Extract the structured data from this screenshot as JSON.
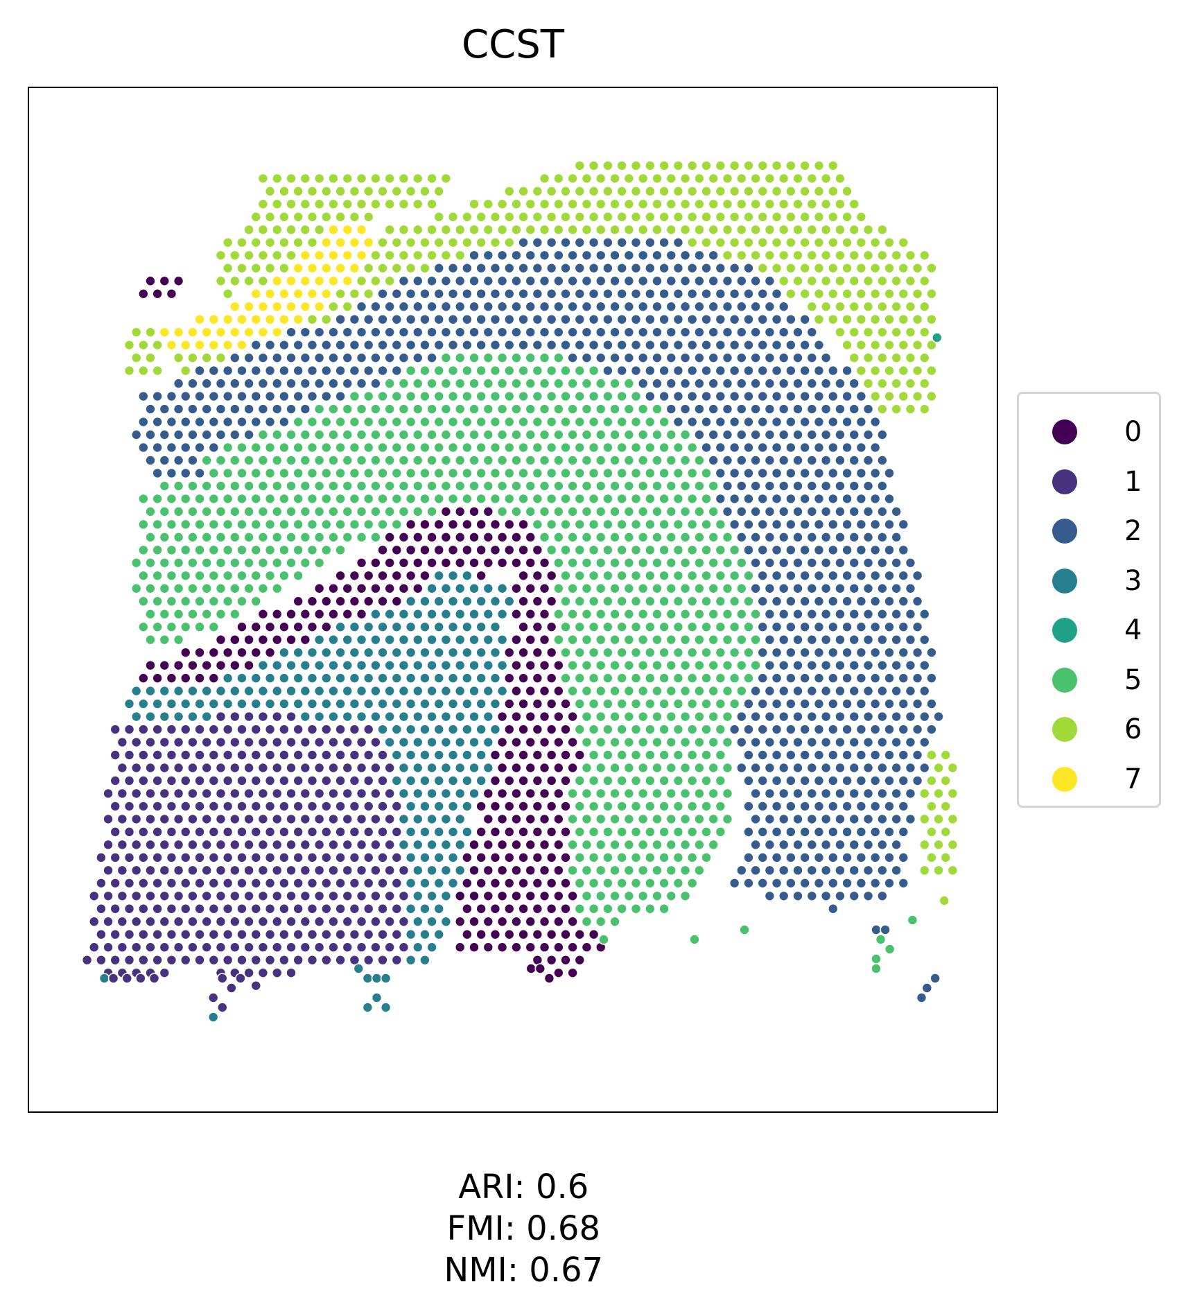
{
  "chart_data": {
    "type": "scatter",
    "title": "CCST",
    "xlabel": "",
    "ylabel": "",
    "grid": false,
    "legend_placement": "right",
    "metrics": [
      {
        "name": "ARI",
        "text": "ARI: 0.6"
      },
      {
        "name": "FMI",
        "text": "FMI: 0.68"
      },
      {
        "name": "NMI",
        "text": "NMI: 0.67"
      }
    ],
    "categories": [
      {
        "name": "0",
        "color": "#440154"
      },
      {
        "name": "1",
        "color": "#46327e"
      },
      {
        "name": "2",
        "color": "#365c8d"
      },
      {
        "name": "3",
        "color": "#277f8e"
      },
      {
        "name": "4",
        "color": "#1fa187"
      },
      {
        "name": "5",
        "color": "#4ac16d"
      },
      {
        "name": "6",
        "color": "#a0da39"
      },
      {
        "name": "7",
        "color": "#fde725"
      }
    ],
    "regions": [
      {
        "cluster": "6",
        "polygon": [
          [
            22,
            6
          ],
          [
            43,
            6
          ],
          [
            43,
            9
          ],
          [
            35,
            10
          ],
          [
            33,
            14
          ],
          [
            30,
            17
          ],
          [
            23,
            17
          ],
          [
            18,
            19
          ],
          [
            17,
            14
          ],
          [
            22,
            10
          ]
        ]
      },
      {
        "cluster": "6",
        "polygon": [
          [
            43,
            10
          ],
          [
            60,
            4
          ],
          [
            85,
            4
          ],
          [
            90,
            11
          ],
          [
            97,
            15
          ],
          [
            96,
            31
          ],
          [
            89,
            31
          ],
          [
            85,
            22
          ],
          [
            72,
            14
          ],
          [
            55,
            12
          ],
          [
            40,
            16
          ],
          [
            32,
            26
          ],
          [
            26,
            29
          ],
          [
            22,
            32
          ],
          [
            14,
            31
          ],
          [
            13,
            25
          ],
          [
            20,
            22
          ],
          [
            28,
            18
          ],
          [
            36,
            12
          ]
        ]
      },
      {
        "cluster": "6",
        "polygon": [
          [
            8,
            22
          ],
          [
            11,
            22
          ],
          [
            11,
            27
          ],
          [
            7,
            27
          ],
          [
            7,
            23
          ]
        ]
      },
      {
        "cluster": "6",
        "polygon": [
          [
            95,
            65
          ],
          [
            99,
            65
          ],
          [
            99,
            79
          ],
          [
            95,
            79
          ]
        ]
      },
      {
        "cluster": "7",
        "polygon": [
          [
            31,
            11
          ],
          [
            33,
            11
          ],
          [
            35,
            14
          ],
          [
            31,
            18
          ],
          [
            27,
            22
          ],
          [
            20,
            24
          ],
          [
            12,
            25
          ],
          [
            11,
            22
          ],
          [
            18,
            20
          ],
          [
            25,
            16
          ]
        ]
      },
      {
        "cluster": "0",
        "polygon": [
          [
            9,
            16
          ],
          [
            14,
            16
          ],
          [
            14,
            18
          ],
          [
            11,
            20
          ],
          [
            9,
            19
          ]
        ]
      },
      {
        "cluster": "0",
        "polygon": [
          [
            38,
            42
          ],
          [
            46,
            40
          ],
          [
            52,
            42
          ],
          [
            55,
            48
          ],
          [
            56,
            56
          ],
          [
            59,
            66
          ],
          [
            58,
            74
          ],
          [
            60,
            86
          ],
          [
            56,
            89
          ],
          [
            52,
            87
          ],
          [
            44,
            87
          ],
          [
            44,
            79
          ],
          [
            46,
            73
          ],
          [
            48,
            66
          ],
          [
            49,
            58
          ],
          [
            50,
            53
          ],
          [
            50,
            47
          ],
          [
            46,
            48
          ],
          [
            40,
            50
          ],
          [
            34,
            53
          ],
          [
            28,
            55
          ],
          [
            20,
            60
          ],
          [
            8,
            60
          ],
          [
            8,
            57
          ],
          [
            18,
            54
          ],
          [
            23,
            51
          ],
          [
            30,
            48
          ]
        ]
      },
      {
        "cluster": "1",
        "polygon": [
          [
            6,
            63
          ],
          [
            17,
            62
          ],
          [
            28,
            62
          ],
          [
            34,
            62
          ],
          [
            39,
            65
          ],
          [
            40,
            75
          ],
          [
            39,
            87
          ],
          [
            33,
            88
          ],
          [
            28,
            88
          ],
          [
            22,
            90
          ],
          [
            15,
            88
          ],
          [
            8,
            89
          ],
          [
            3,
            88
          ],
          [
            4,
            79
          ],
          [
            5,
            72
          ]
        ]
      },
      {
        "cluster": "3",
        "polygon": [
          [
            7,
            59
          ],
          [
            18,
            58
          ],
          [
            30,
            53
          ],
          [
            38,
            50
          ],
          [
            42,
            47
          ],
          [
            50,
            48
          ],
          [
            49,
            58
          ],
          [
            48,
            66
          ],
          [
            46,
            71
          ],
          [
            44,
            79
          ],
          [
            42,
            87
          ],
          [
            38,
            88
          ],
          [
            38,
            78
          ],
          [
            37,
            68
          ],
          [
            34,
            63
          ],
          [
            26,
            62
          ],
          [
            17,
            62
          ],
          [
            7,
            63
          ]
        ]
      },
      {
        "cluster": "5",
        "polygon": [
          [
            30,
            28
          ],
          [
            44,
            24
          ],
          [
            56,
            24
          ],
          [
            68,
            30
          ],
          [
            73,
            38
          ],
          [
            76,
            44
          ],
          [
            77,
            52
          ],
          [
            77,
            60
          ],
          [
            74,
            66
          ],
          [
            74,
            74
          ],
          [
            68,
            82
          ],
          [
            58,
            84
          ],
          [
            56,
            78
          ],
          [
            56,
            70
          ],
          [
            58,
            66
          ],
          [
            55,
            56
          ],
          [
            55,
            48
          ],
          [
            52,
            42
          ],
          [
            46,
            40
          ],
          [
            38,
            42
          ],
          [
            28,
            47
          ],
          [
            18,
            53
          ],
          [
            10,
            55
          ],
          [
            8,
            50
          ],
          [
            9,
            40
          ],
          [
            15,
            32
          ],
          [
            24,
            30
          ]
        ]
      },
      {
        "cluster": "2",
        "polygon": [
          [
            30,
            21
          ],
          [
            40,
            16
          ],
          [
            55,
            12
          ],
          [
            68,
            13
          ],
          [
            78,
            16
          ],
          [
            85,
            24
          ],
          [
            90,
            30
          ],
          [
            93,
            42
          ],
          [
            96,
            52
          ],
          [
            97,
            62
          ],
          [
            94,
            72
          ],
          [
            93,
            80
          ],
          [
            85,
            82
          ],
          [
            74,
            80
          ],
          [
            76,
            72
          ],
          [
            74,
            64
          ],
          [
            77,
            58
          ],
          [
            77,
            50
          ],
          [
            74,
            42
          ],
          [
            70,
            34
          ],
          [
            64,
            28
          ],
          [
            52,
            24
          ],
          [
            42,
            25
          ],
          [
            32,
            29
          ],
          [
            24,
            32
          ],
          [
            14,
            36
          ],
          [
            12,
            28
          ],
          [
            20,
            24
          ]
        ]
      },
      {
        "cluster": "2",
        "polygon": [
          [
            9,
            28
          ],
          [
            16,
            29
          ],
          [
            16,
            37
          ],
          [
            10,
            38
          ],
          [
            8,
            34
          ]
        ]
      }
    ],
    "points": [
      {
        "cluster": "4",
        "x": 96.7,
        "y": 23
      },
      {
        "cluster": "6",
        "x": 97.5,
        "y": 81
      },
      {
        "cluster": "5",
        "x": 94,
        "y": 83
      },
      {
        "cluster": "5",
        "x": 90.5,
        "y": 85
      },
      {
        "cluster": "5",
        "x": 91.5,
        "y": 86
      },
      {
        "cluster": "5",
        "x": 90,
        "y": 87
      },
      {
        "cluster": "5",
        "x": 90,
        "y": 88
      },
      {
        "cluster": "2",
        "x": 90,
        "y": 84
      },
      {
        "cluster": "2",
        "x": 91,
        "y": 84
      },
      {
        "cluster": "2",
        "x": 96.5,
        "y": 89
      },
      {
        "cluster": "2",
        "x": 95.6,
        "y": 90
      },
      {
        "cluster": "2",
        "x": 95,
        "y": 91
      },
      {
        "cluster": "5",
        "x": 70,
        "y": 85
      },
      {
        "cluster": "5",
        "x": 75.5,
        "y": 84
      },
      {
        "cluster": "5",
        "x": 60,
        "y": 85
      },
      {
        "cluster": "3",
        "x": 5,
        "y": 89
      },
      {
        "cluster": "1",
        "x": 6,
        "y": 89
      },
      {
        "cluster": "1",
        "x": 7.5,
        "y": 89
      },
      {
        "cluster": "1",
        "x": 9,
        "y": 89
      },
      {
        "cluster": "1",
        "x": 10.5,
        "y": 89
      },
      {
        "cluster": "1",
        "x": 18,
        "y": 89
      },
      {
        "cluster": "1",
        "x": 19,
        "y": 90
      },
      {
        "cluster": "1",
        "x": 20,
        "y": 89
      },
      {
        "cluster": "1",
        "x": 17,
        "y": 91
      },
      {
        "cluster": "1",
        "x": 18,
        "y": 92
      },
      {
        "cluster": "3",
        "x": 17,
        "y": 93
      },
      {
        "cluster": "3",
        "x": 33,
        "y": 88
      },
      {
        "cluster": "3",
        "x": 34,
        "y": 89
      },
      {
        "cluster": "3",
        "x": 35,
        "y": 89
      },
      {
        "cluster": "3",
        "x": 36,
        "y": 89
      },
      {
        "cluster": "3",
        "x": 35,
        "y": 91
      },
      {
        "cluster": "3",
        "x": 34,
        "y": 92
      },
      {
        "cluster": "3",
        "x": 36,
        "y": 92
      },
      {
        "cluster": "0",
        "x": 52,
        "y": 88
      },
      {
        "cluster": "0",
        "x": 53,
        "y": 88
      },
      {
        "cluster": "0",
        "x": 54,
        "y": 89
      }
    ]
  }
}
